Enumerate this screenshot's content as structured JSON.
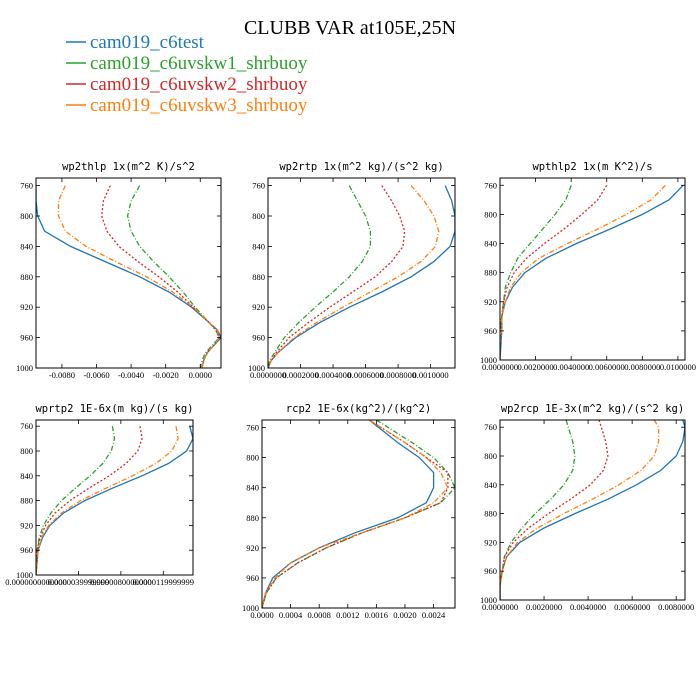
{
  "figure": {
    "title": "CLUBB VAR at105E,25N"
  },
  "legend": [
    {
      "name": "cam019_c6test",
      "color": "#1f77b4",
      "dash": ""
    },
    {
      "name": "cam019_c6uvskw1_shrbuoy",
      "color": "#2ca02c",
      "dash": "5,2,1,2"
    },
    {
      "name": "cam019_c6uvskw2_shrbuoy",
      "color": "#d62728",
      "dash": "2,2"
    },
    {
      "name": "cam019_c6uvskw3_shrbuoy",
      "color": "#ff7f0e",
      "dash": "5,2,1,2"
    }
  ],
  "chart_data": [
    {
      "type": "line",
      "title": "wp2thlp  1x(m^2 K)/s^2",
      "xlim": [
        -0.0095,
        0.0012
      ],
      "ylim": [
        1000,
        750
      ],
      "yticks": [
        760,
        800,
        840,
        880,
        920,
        960,
        1000
      ],
      "xtick_values": [
        -0.008,
        -0.006,
        -0.004,
        -0.002,
        0.0
      ],
      "xtick_labels": [
        "-0.0080",
        "-0.0060",
        "-0.0040",
        "-0.0020",
        "0.0000"
      ],
      "y": [
        760,
        780,
        800,
        820,
        840,
        860,
        880,
        900,
        920,
        940,
        950,
        960,
        970,
        980,
        990,
        1000
      ],
      "series": [
        {
          "name": "cam019_c6test",
          "x": [
            -0.0095,
            -0.0095,
            -0.0094,
            -0.009,
            -0.0075,
            -0.0055,
            -0.0035,
            -0.0018,
            -0.0005,
            0.0005,
            0.001,
            0.0012,
            0.0008,
            0.0004,
            0.0002,
            0.0001
          ]
        },
        {
          "name": "cam019_c6uvskw1_shrbuoy",
          "x": [
            -0.0035,
            -0.004,
            -0.0042,
            -0.004,
            -0.0035,
            -0.0027,
            -0.0018,
            -0.001,
            -0.0003,
            0.0005,
            0.0009,
            0.0011,
            0.0007,
            0.0003,
            0.0001,
            0.0
          ]
        },
        {
          "name": "cam019_c6uvskw2_shrbuoy",
          "x": [
            -0.0052,
            -0.0056,
            -0.0057,
            -0.0054,
            -0.0047,
            -0.0036,
            -0.0024,
            -0.0013,
            -0.0004,
            0.0005,
            0.0009,
            0.0011,
            0.0008,
            0.0004,
            0.0002,
            0.0001
          ]
        },
        {
          "name": "cam019_c6uvskw3_shrbuoy",
          "x": [
            -0.0078,
            -0.0082,
            -0.0082,
            -0.0078,
            -0.0066,
            -0.0049,
            -0.0031,
            -0.0016,
            -0.0004,
            0.0005,
            0.001,
            0.0011,
            0.0008,
            0.0004,
            0.0002,
            0.0001
          ]
        }
      ]
    },
    {
      "type": "line",
      "title": "wp2rtp  1x(m^2 kg)/(s^2 kg)",
      "xlim": [
        0.0,
        0.00115
      ],
      "ylim": [
        1000,
        750
      ],
      "yticks": [
        760,
        800,
        840,
        880,
        920,
        960,
        1000
      ],
      "xtick_values": [
        0.0,
        0.0002,
        0.0004,
        0.0006,
        0.0008,
        0.001
      ],
      "xtick_labels": [
        "0.0000000",
        "0.0002000",
        "0.0004000",
        "0.0006000",
        "0.0008000",
        "0.0010000"
      ],
      "y": [
        760,
        780,
        800,
        820,
        840,
        860,
        880,
        900,
        920,
        940,
        960,
        980,
        990,
        1000
      ],
      "series": [
        {
          "name": "cam019_c6test",
          "x": [
            0.00109,
            0.00113,
            0.00115,
            0.00115,
            0.00112,
            0.00102,
            0.00088,
            0.0007,
            0.0005,
            0.00032,
            0.00017,
            6e-05,
            2e-05,
            0.0
          ]
        },
        {
          "name": "cam019_c6uvskw1_shrbuoy",
          "x": [
            0.0005,
            0.00055,
            0.0006,
            0.00063,
            0.00063,
            0.00058,
            0.0005,
            0.0004,
            0.00029,
            0.00019,
            0.0001,
            4e-05,
            1e-05,
            0.0
          ]
        },
        {
          "name": "cam019_c6uvskw2_shrbuoy",
          "x": [
            0.0007,
            0.00076,
            0.00081,
            0.00084,
            0.00083,
            0.00076,
            0.00066,
            0.00052,
            0.00038,
            0.00025,
            0.00013,
            5e-05,
            2e-05,
            0.0
          ]
        },
        {
          "name": "cam019_c6uvskw3_shrbuoy",
          "x": [
            0.00088,
            0.00096,
            0.00102,
            0.00105,
            0.00103,
            0.00094,
            0.0008,
            0.00063,
            0.00046,
            0.0003,
            0.00016,
            6e-05,
            2e-05,
            0.0
          ]
        }
      ]
    },
    {
      "type": "line",
      "title": "wpthlp2  1x(m K^2)/s",
      "xlim": [
        0.0,
        0.0104
      ],
      "ylim": [
        1000,
        750
      ],
      "yticks": [
        760,
        800,
        840,
        880,
        920,
        960,
        1000
      ],
      "xtick_values": [
        0.0,
        0.002,
        0.004,
        0.006,
        0.008,
        0.01
      ],
      "xtick_labels": [
        "0.0000000",
        "0.0020000",
        "0.0040000",
        "0.0060000",
        "0.0080000",
        "0.0100000"
      ],
      "y": [
        760,
        780,
        800,
        820,
        840,
        860,
        880,
        900,
        920,
        940,
        960,
        980,
        1000
      ],
      "series": [
        {
          "name": "cam019_c6test",
          "x": [
            0.0103,
            0.0095,
            0.008,
            0.0062,
            0.0043,
            0.0026,
            0.0014,
            0.0007,
            0.0003,
            0.0001,
            0.0001,
            5e-05,
            0.0
          ]
        },
        {
          "name": "cam019_c6uvskw1_shrbuoy",
          "x": [
            0.004,
            0.0037,
            0.0031,
            0.0024,
            0.0017,
            0.001,
            0.0006,
            0.0003,
            0.0002,
            0.0001,
            0.0,
            0.0,
            0.0
          ]
        },
        {
          "name": "cam019_c6uvskw2_shrbuoy",
          "x": [
            0.006,
            0.0055,
            0.0046,
            0.0036,
            0.0025,
            0.0015,
            0.0008,
            0.0004,
            0.0002,
            0.0001,
            0.0,
            0.0,
            0.0
          ]
        },
        {
          "name": "cam019_c6uvskw3_shrbuoy",
          "x": [
            0.0093,
            0.0085,
            0.0071,
            0.0055,
            0.0038,
            0.0022,
            0.0012,
            0.0006,
            0.0003,
            0.0001,
            0.0001,
            0.0,
            0.0
          ]
        }
      ]
    },
    {
      "type": "line",
      "title": "wprtp2  1E-6x(m kg)/(s kg)",
      "xlim": [
        0.0,
        1.48e-05
      ],
      "ylim": [
        1000,
        750
      ],
      "yticks": [
        760,
        800,
        840,
        880,
        920,
        960,
        1000
      ],
      "xtick_values": [
        0.0,
        4e-06,
        8e-06,
        1.2e-05
      ],
      "xtick_labels": [
        "0.0000000000000",
        "0.0000039999999",
        "0.0000080000000",
        "0.0000119999999"
      ],
      "y": [
        760,
        780,
        800,
        820,
        840,
        860,
        880,
        900,
        920,
        940,
        960,
        980,
        1000
      ],
      "series": [
        {
          "name": "cam019_c6test",
          "x": [
            1.45e-05,
            1.48e-05,
            1.42e-05,
            1.25e-05,
            1e-05,
            7.2e-06,
            4.6e-06,
            2.6e-06,
            1.3e-06,
            6e-07,
            2e-07,
            1e-07,
            0.0
          ]
        },
        {
          "name": "cam019_c6uvskw1_shrbuoy",
          "x": [
            7.2e-06,
            7.4e-06,
            7.1e-06,
            6.3e-06,
            5.1e-06,
            3.7e-06,
            2.4e-06,
            1.4e-06,
            7e-07,
            3e-07,
            1e-07,
            0.0,
            0.0
          ]
        },
        {
          "name": "cam019_c6uvskw2_shrbuoy",
          "x": [
            9.8e-06,
            1e-05,
            9.6e-06,
            8.5e-06,
            6.9e-06,
            5e-06,
            3.2e-06,
            1.8e-06,
            9e-07,
            4e-07,
            1e-07,
            0.0,
            0.0
          ]
        },
        {
          "name": "cam019_c6uvskw3_shrbuoy",
          "x": [
            1.32e-05,
            1.34e-05,
            1.28e-05,
            1.13e-05,
            9.1e-06,
            6.6e-06,
            4.2e-06,
            2.4e-06,
            1.2e-06,
            5e-07,
            2e-07,
            1e-07,
            0.0
          ]
        }
      ]
    },
    {
      "type": "line",
      "title": "rcp2  1E-6x(kg^2)/(kg^2)",
      "xlim": [
        0.0,
        0.0027
      ],
      "ylim": [
        1000,
        750
      ],
      "yticks": [
        760,
        800,
        840,
        880,
        920,
        960,
        1000
      ],
      "xtick_values": [
        0.0,
        0.0004,
        0.0008,
        0.0012,
        0.0016,
        0.002,
        0.0024
      ],
      "xtick_labels": [
        "0.0000",
        "0.0004",
        "0.0008",
        "0.0012",
        "0.0016",
        "0.0020",
        "0.0024"
      ],
      "y": [
        750,
        780,
        800,
        820,
        840,
        860,
        880,
        900,
        920,
        940,
        960,
        980,
        1000
      ],
      "series": [
        {
          "name": "cam019_c6test",
          "x": [
            0.0015,
            0.0019,
            0.0022,
            0.0024,
            0.0024,
            0.0023,
            0.0019,
            0.0013,
            0.0008,
            0.0004,
            0.00015,
            5e-05,
            0.0
          ]
        },
        {
          "name": "cam019_c6uvskw1_shrbuoy",
          "x": [
            0.0016,
            0.0021,
            0.0024,
            0.0026,
            0.0027,
            0.0025,
            0.002,
            0.0014,
            0.0009,
            0.0005,
            0.0002,
            6e-05,
            0.0
          ]
        },
        {
          "name": "cam019_c6uvskw2_shrbuoy",
          "x": [
            0.0015,
            0.002,
            0.0023,
            0.0026,
            0.0026,
            0.0025,
            0.002,
            0.0014,
            0.0009,
            0.0005,
            0.0002,
            6e-05,
            0.0
          ]
        },
        {
          "name": "cam019_c6uvskw3_shrbuoy",
          "x": [
            0.0015,
            0.002,
            0.0023,
            0.0025,
            0.0026,
            0.0024,
            0.002,
            0.0014,
            0.0008,
            0.0004,
            0.00018,
            5e-05,
            0.0
          ]
        }
      ]
    },
    {
      "type": "line",
      "title": "wp2rcp  1E-3x(m^2 kg)/(s^2 kg)",
      "xlim": [
        0.0,
        0.0084
      ],
      "ylim": [
        1000,
        750
      ],
      "yticks": [
        760,
        800,
        840,
        880,
        920,
        960,
        1000
      ],
      "xtick_values": [
        0.0,
        0.002,
        0.004,
        0.006,
        0.008
      ],
      "xtick_labels": [
        "0.0000000",
        "0.0020000",
        "0.0040000",
        "0.0060000",
        "0.0080000"
      ],
      "y": [
        750,
        760,
        780,
        800,
        820,
        840,
        860,
        880,
        900,
        920,
        940,
        960,
        980,
        1000
      ],
      "series": [
        {
          "name": "cam019_c6test",
          "x": [
            0.0083,
            0.0084,
            0.0083,
            0.008,
            0.0073,
            0.0062,
            0.0049,
            0.0034,
            0.002,
            0.0009,
            0.0003,
            0.0001,
            0.0,
            0.0
          ]
        },
        {
          "name": "cam019_c6uvskw1_shrbuoy",
          "x": [
            0.003,
            0.0031,
            0.0033,
            0.0034,
            0.0033,
            0.0029,
            0.0023,
            0.0016,
            0.001,
            0.0005,
            0.0002,
            0.0001,
            0.0,
            0.0
          ]
        },
        {
          "name": "cam019_c6uvskw2_shrbuoy",
          "x": [
            0.0045,
            0.0046,
            0.0048,
            0.0049,
            0.0047,
            0.0041,
            0.0032,
            0.0022,
            0.0013,
            0.0006,
            0.0002,
            0.0001,
            0.0,
            0.0
          ]
        },
        {
          "name": "cam019_c6uvskw3_shrbuoy",
          "x": [
            0.007,
            0.0072,
            0.0072,
            0.007,
            0.0064,
            0.0054,
            0.0042,
            0.0029,
            0.0017,
            0.0008,
            0.0003,
            0.0001,
            0.0,
            0.0
          ]
        }
      ]
    }
  ]
}
